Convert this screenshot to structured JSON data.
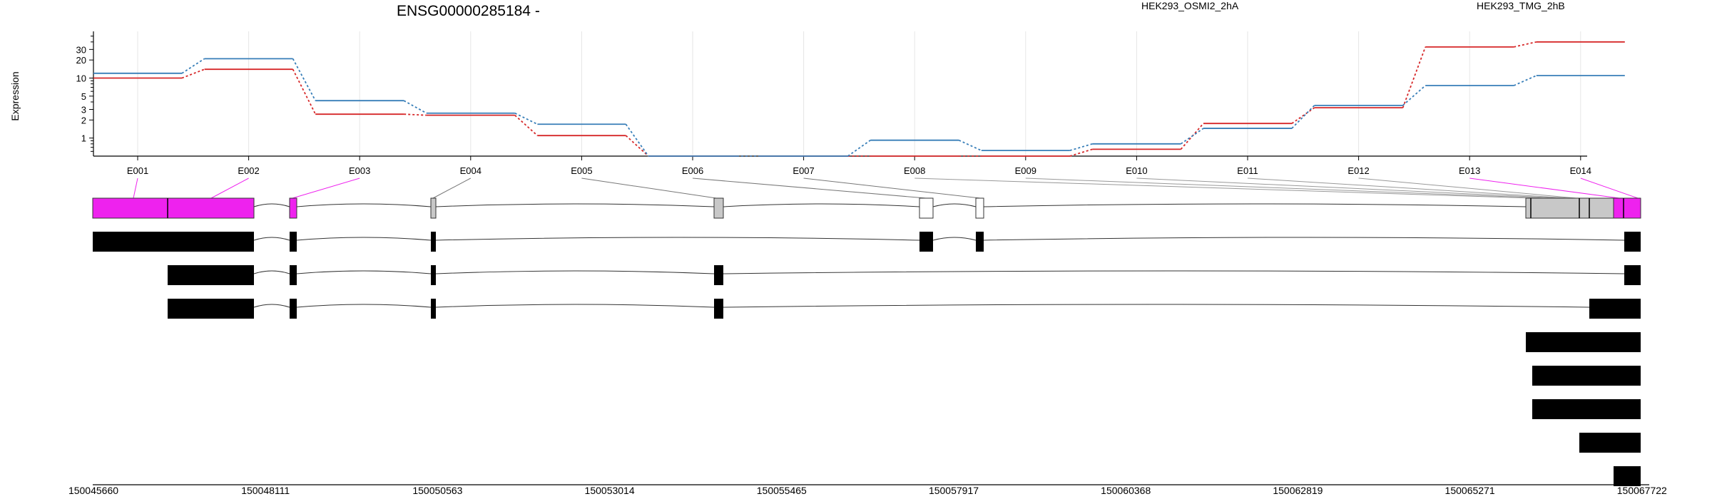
{
  "chart_data": {
    "type": "line",
    "title": "ENSG00000285184 -",
    "ylabel": "Expression",
    "yscale": "log",
    "yticks": [
      1,
      2,
      3,
      5,
      10,
      20,
      30
    ],
    "ylim": [
      0.5,
      60
    ],
    "legend_placement": "top-right",
    "categories": [
      "E001",
      "E002",
      "E003",
      "E004",
      "E005",
      "E006",
      "E007",
      "E008",
      "E009",
      "E010",
      "E011",
      "E012",
      "E013",
      "E014"
    ],
    "series": [
      {
        "name": "HEK293_OSMI2_2hA",
        "color": "#d62728",
        "values": [
          10,
          14,
          2.5,
          2.4,
          1.1,
          0.5,
          0.5,
          0.5,
          0.5,
          0.65,
          1.75,
          3.2,
          33,
          40
        ]
      },
      {
        "name": "HEK293_TMG_2hB",
        "color": "#377eb8",
        "values": [
          12,
          21,
          4.2,
          2.6,
          1.7,
          0.5,
          0.5,
          0.92,
          0.62,
          0.8,
          1.45,
          3.5,
          7.5,
          11
        ]
      }
    ],
    "grid": true,
    "exon_color_highlight": "#ee22ee",
    "exon_color_default": "#c8c8c8",
    "genomic_coordinates": [
      "150045660",
      "150048111",
      "150050563",
      "150053014",
      "150055465",
      "150057917",
      "150060368",
      "150062819",
      "150065271",
      "150067722"
    ]
  }
}
